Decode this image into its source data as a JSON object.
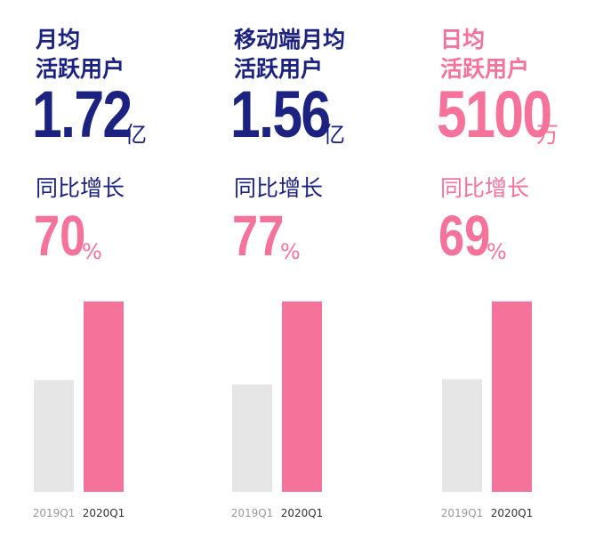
{
  "colors": {
    "navy": "#1c2280",
    "pink": "#f5739b",
    "gray_bar": "#e6e6e6",
    "pink_bar": "#f5739b",
    "gray_label": "#9a9a9a",
    "dark_label": "#333333"
  },
  "panels": [
    {
      "title_line1": "月均",
      "title_line2": "活跃用户",
      "value": "1.72",
      "unit": "亿",
      "growth_label": "同比增长",
      "growth_value": "70",
      "growth_suffix": "%"
    },
    {
      "title_line1": "移动端月均",
      "title_line2": "活跃用户",
      "value": "1.56",
      "unit": "亿",
      "growth_label": "同比增长",
      "growth_value": "77",
      "growth_suffix": "%"
    },
    {
      "title_line1": "日均",
      "title_line2": "活跃用户",
      "value": "5100",
      "unit": "万",
      "growth_label": "同比增长",
      "growth_value": "69",
      "growth_suffix": "%"
    }
  ],
  "chart_data": [
    {
      "type": "bar",
      "categories": [
        "2019Q1",
        "2020Q1"
      ],
      "values": [
        1.01,
        1.72
      ],
      "ylim": [
        0,
        1.72
      ],
      "grid": false
    },
    {
      "type": "bar",
      "categories": [
        "2019Q1",
        "2020Q1"
      ],
      "values": [
        0.88,
        1.56
      ],
      "ylim": [
        0,
        1.56
      ],
      "grid": false
    },
    {
      "type": "bar",
      "categories": [
        "2019Q1",
        "2020Q1"
      ],
      "values": [
        3018,
        5100
      ],
      "ylim": [
        0,
        5100
      ],
      "grid": false
    }
  ]
}
